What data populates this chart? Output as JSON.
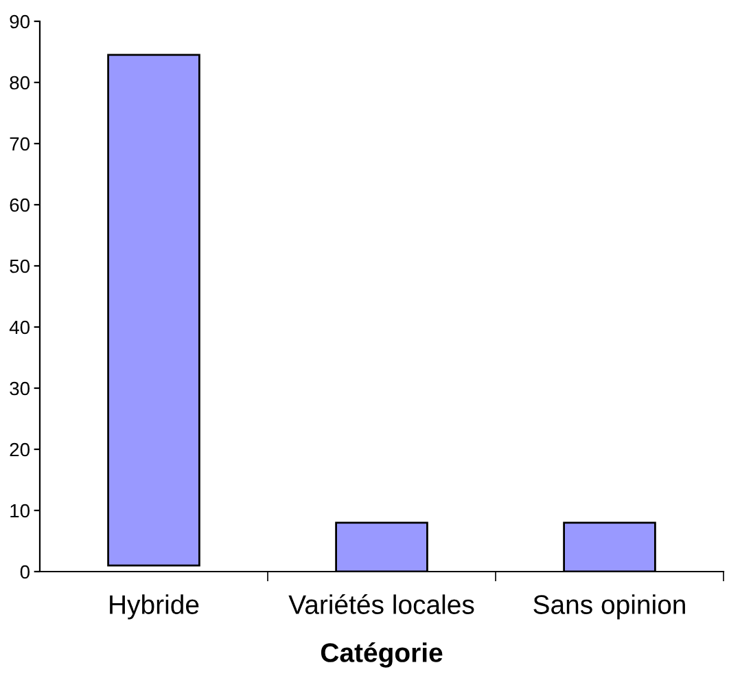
{
  "chart_data": {
    "type": "bar",
    "xlabel": "Catégorie",
    "categories": [
      "Hybride",
      "Variétés locales",
      "Sans opinion"
    ],
    "values": [
      83.5,
      8,
      8
    ],
    "base": [
      1,
      0,
      0
    ],
    "color": "#9999ff",
    "ylim": [
      0,
      90
    ],
    "yticks": [
      0,
      10,
      20,
      30,
      40,
      50,
      60,
      70,
      80,
      90
    ],
    "grid": false,
    "legend": false
  }
}
